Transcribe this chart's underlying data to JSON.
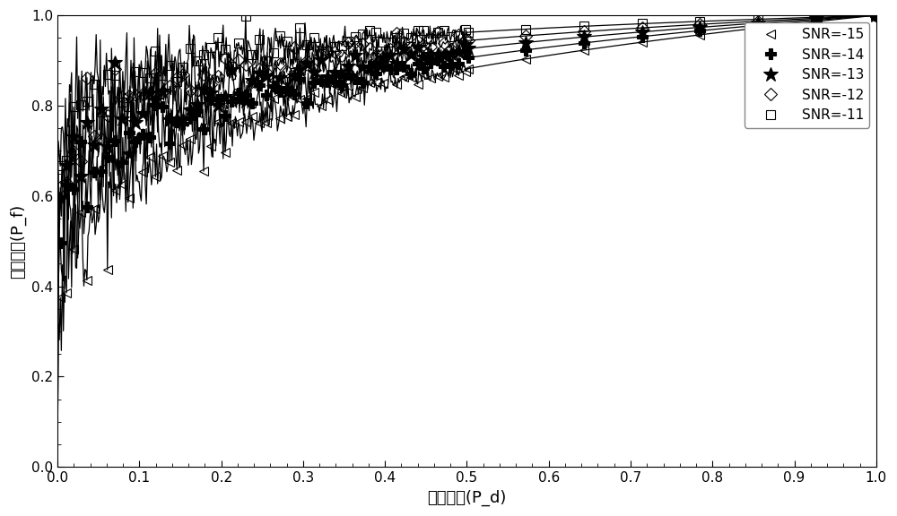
{
  "xlabel": "虚警概率(P_d)",
  "ylabel": "检测概率(P_f)",
  "xlim": [
    0,
    1
  ],
  "ylim": [
    0,
    1
  ],
  "xticks": [
    0,
    0.1,
    0.2,
    0.3,
    0.4,
    0.5,
    0.6,
    0.7,
    0.8,
    0.9,
    1.0
  ],
  "yticks": [
    0,
    0.2,
    0.4,
    0.6,
    0.8,
    1.0
  ],
  "snr_labels": [
    "SNR=-15",
    "SNR=-14",
    "SNR=-13",
    "SNR=-12",
    "SNR=-11"
  ],
  "alphas": [
    5.5,
    7.0,
    9.0,
    12.0,
    18.0
  ],
  "noise_seed": 12,
  "n_dense": 800,
  "n_marked_dense": 60,
  "n_marked_sparse": 8,
  "noise_scale_dense": 0.022,
  "dense_cutoff": 0.5,
  "line_color": "#000000",
  "background_color": "#ffffff",
  "legend_loc": "upper right",
  "figsize": [
    10.0,
    5.76
  ],
  "dpi": 100
}
